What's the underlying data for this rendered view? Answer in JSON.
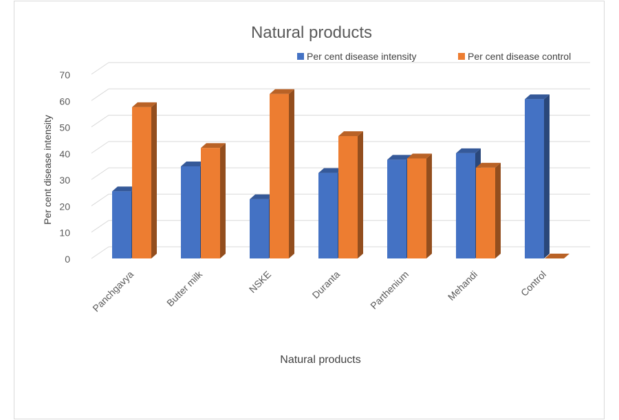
{
  "chart_data": {
    "type": "bar",
    "title": "Natural products",
    "xlabel": "Natural products",
    "ylabel": "Per cent disease intensity",
    "categories": [
      "Panchgavya",
      "Butter milk",
      "NSKE",
      "Duranta",
      "Parthenium",
      "Mehandi",
      "Control"
    ],
    "series": [
      {
        "name": "Per cent disease intensity",
        "values": [
          25.5,
          35,
          22.5,
          32.5,
          37.5,
          40,
          60.5
        ],
        "color": "#4472c4"
      },
      {
        "name": "Per cent disease control",
        "values": [
          57.5,
          42,
          62.5,
          46.5,
          38,
          34.5,
          0
        ],
        "color": "#ed7d31"
      }
    ],
    "yticks": [
      0,
      10,
      20,
      30,
      40,
      50,
      60,
      70
    ],
    "ylim": [
      0,
      70
    ],
    "grid": true,
    "legend_position": "top-right",
    "three_d": true
  }
}
